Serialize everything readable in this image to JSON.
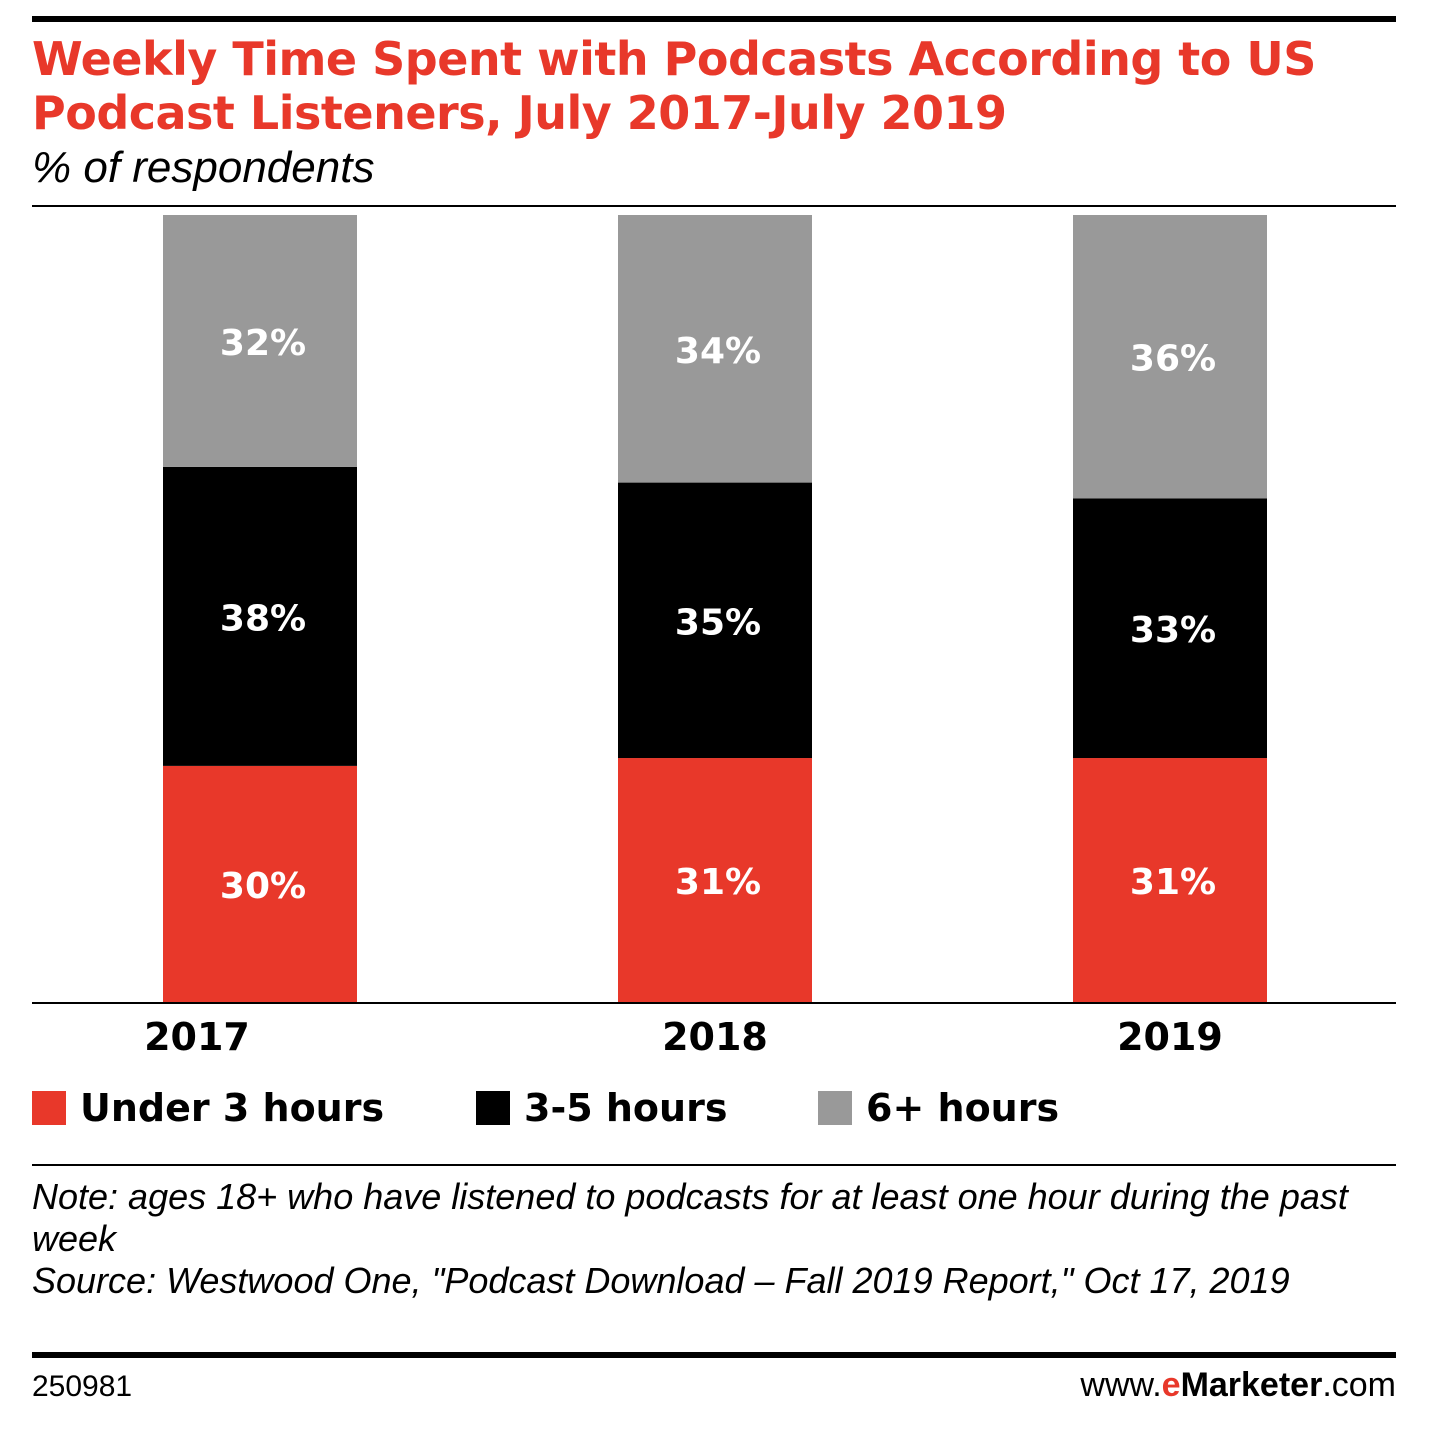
{
  "header": {
    "title": "Weekly Time Spent with Podcasts According to US Podcast Listeners, July 2017-July 2019",
    "subtitle": "% of respondents"
  },
  "colors": {
    "accent": "#e8382a",
    "under_3": "#e8382a",
    "three_to_five": "#000000",
    "six_plus": "#999999",
    "data_label": "#ffffff"
  },
  "chart_data": {
    "type": "bar",
    "stacked": true,
    "categories": [
      "2017",
      "2018",
      "2019"
    ],
    "series": [
      {
        "name": "Under 3 hours",
        "values": [
          30,
          31,
          31
        ],
        "labels": [
          "30%",
          "31%",
          "31%"
        ]
      },
      {
        "name": "3-5 hours",
        "values": [
          38,
          35,
          33
        ],
        "labels": [
          "38%",
          "35%",
          "33%"
        ]
      },
      {
        "name": "6+ hours",
        "values": [
          32,
          34,
          36
        ],
        "labels": [
          "32%",
          "34%",
          "36%"
        ]
      }
    ],
    "ylim": [
      0,
      100
    ],
    "legend_position": "bottom",
    "grid": false
  },
  "footer": {
    "note": "Note: ages 18+ who have listened to podcasts for at least one hour during the past week",
    "source": "Source: Westwood One, \"Podcast Download – Fall 2019 Report,\" Oct 17, 2019",
    "chart_id": "250981",
    "brand_prefix": "www.",
    "brand_e": "e",
    "brand_name": "Marketer",
    "brand_suffix": ".com"
  }
}
